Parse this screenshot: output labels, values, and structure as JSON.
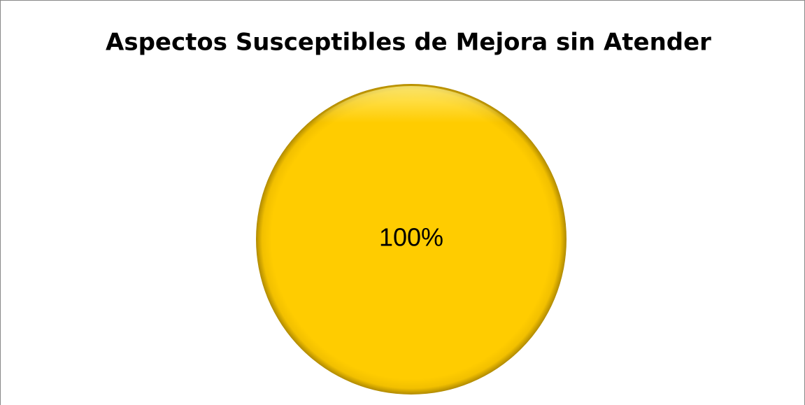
{
  "chart_data": {
    "type": "pie",
    "title": "Aspectos Susceptibles de Mejora sin Atender",
    "values": [
      100
    ],
    "value_labels": [
      "100%"
    ],
    "colors": [
      "#ffcc00"
    ]
  }
}
